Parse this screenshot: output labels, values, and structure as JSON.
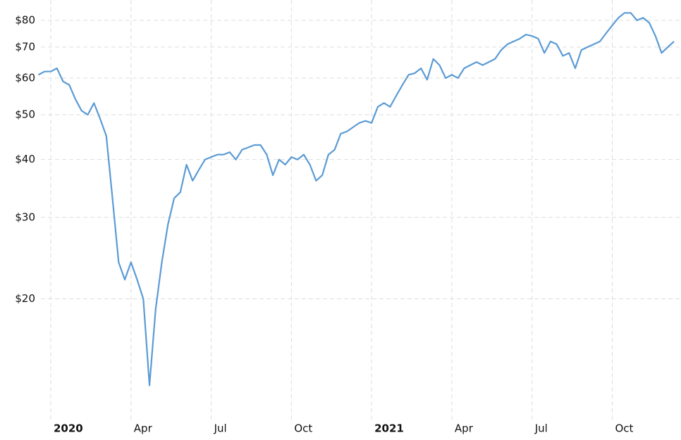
{
  "chart_data": {
    "type": "line",
    "log_y": true,
    "grid": true,
    "categories": [
      null,
      null,
      "2020",
      null,
      null,
      null,
      null,
      null,
      null,
      null,
      null,
      null,
      null,
      null,
      null,
      "Apr",
      null,
      null,
      null,
      null,
      null,
      null,
      null,
      null,
      null,
      null,
      null,
      null,
      "Jul",
      null,
      null,
      null,
      null,
      null,
      null,
      null,
      null,
      null,
      null,
      null,
      null,
      "Oct",
      null,
      null,
      null,
      null,
      null,
      null,
      null,
      null,
      null,
      null,
      null,
      null,
      "2021",
      null,
      null,
      null,
      null,
      null,
      null,
      null,
      null,
      null,
      null,
      null,
      null,
      "Apr",
      null,
      null,
      null,
      null,
      null,
      null,
      null,
      null,
      null,
      null,
      null,
      null,
      "Jul",
      null,
      null,
      null,
      null,
      null,
      null,
      null,
      null,
      null,
      null,
      null,
      null,
      "Oct",
      null,
      null,
      null,
      null,
      null,
      null,
      null,
      null,
      null,
      null
    ],
    "series": [
      {
        "color": "#5b9bd5",
        "values": [
          61,
          62,
          62,
          63,
          59,
          58,
          54,
          51,
          50,
          53,
          49,
          45,
          33,
          24,
          22,
          24,
          22,
          20,
          13,
          19,
          24,
          29,
          33,
          34,
          39,
          36,
          38,
          40,
          40.5,
          41,
          41,
          41.5,
          40,
          42,
          42.5,
          43,
          43,
          41,
          37,
          40,
          39,
          40.5,
          40,
          41,
          39,
          36,
          37,
          41,
          42,
          45.5,
          46,
          47,
          48,
          48.5,
          48,
          52,
          53,
          52,
          55,
          58,
          61,
          61.5,
          63,
          59.5,
          66,
          64,
          60,
          61,
          60,
          63,
          64,
          65,
          64,
          65,
          66,
          69,
          71,
          72,
          73,
          74.5,
          74,
          73,
          68,
          72,
          71,
          67,
          68,
          63,
          69,
          70,
          71,
          72,
          75,
          78,
          81,
          83,
          83,
          80,
          81,
          79,
          74,
          68,
          70,
          72
        ]
      }
    ],
    "ylim": [
      11.2,
      88.5
    ],
    "yticks": [
      {
        "value": 20,
        "label": "$20"
      },
      {
        "value": 30,
        "label": "$30"
      },
      {
        "value": 40,
        "label": "$40"
      },
      {
        "value": 50,
        "label": "$50"
      },
      {
        "value": 60,
        "label": "$60"
      },
      {
        "value": 70,
        "label": "$70"
      },
      {
        "value": 80,
        "label": "$80"
      }
    ]
  }
}
